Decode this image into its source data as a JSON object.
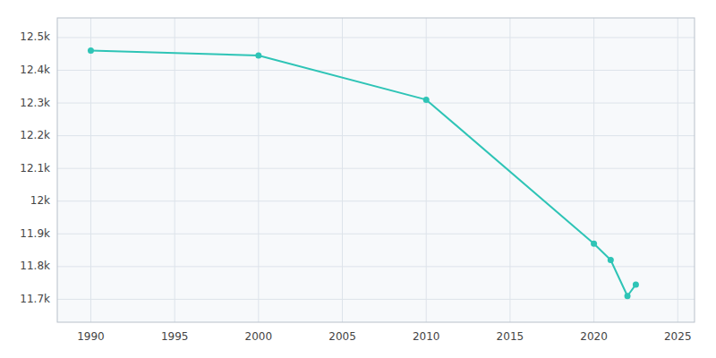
{
  "chart_data": {
    "type": "line",
    "x": [
      1990,
      2000,
      2010,
      2020,
      2021,
      2022,
      2022.5
    ],
    "values": [
      12460,
      12445,
      12310,
      11870,
      11820,
      11710,
      11745
    ],
    "color": "#2ec4b6",
    "marker": "circle",
    "xlim": [
      1988,
      2026
    ],
    "ylim": [
      11630,
      12560
    ],
    "xticks": [
      1990,
      1995,
      2000,
      2005,
      2010,
      2015,
      2020,
      2025
    ],
    "yticks": [
      {
        "value": 11700,
        "label": "11.7k"
      },
      {
        "value": 11800,
        "label": "11.8k"
      },
      {
        "value": 11900,
        "label": "11.9k"
      },
      {
        "value": 12000,
        "label": "12k"
      },
      {
        "value": 12100,
        "label": "12.1k"
      },
      {
        "value": 12200,
        "label": "12.2k"
      },
      {
        "value": 12300,
        "label": "12.3k"
      },
      {
        "value": 12400,
        "label": "12.4k"
      },
      {
        "value": 12500,
        "label": "12.5k"
      }
    ],
    "grid": true
  }
}
